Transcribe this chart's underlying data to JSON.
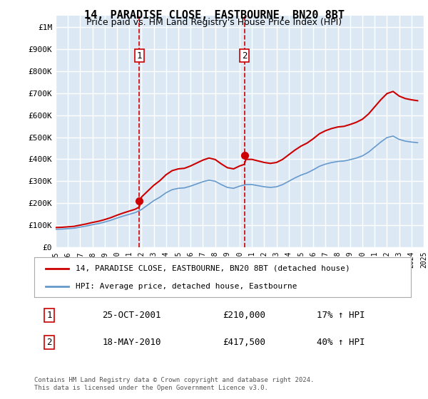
{
  "title": "14, PARADISE CLOSE, EASTBOURNE, BN20 8BT",
  "subtitle": "Price paid vs. HM Land Registry's House Price Index (HPI)",
  "ylabel": "",
  "ylim": [
    0,
    1050000
  ],
  "yticks": [
    0,
    100000,
    200000,
    300000,
    400000,
    500000,
    600000,
    700000,
    800000,
    900000,
    1000000
  ],
  "ytick_labels": [
    "£0",
    "£100K",
    "£200K",
    "£300K",
    "£400K",
    "£500K",
    "£600K",
    "£700K",
    "£800K",
    "£900K",
    "£1M"
  ],
  "bg_color": "#dce9f5",
  "plot_bg": "#dce9f5",
  "grid_color": "#ffffff",
  "red_line_color": "#cc0000",
  "blue_line_color": "#6699cc",
  "vline_color": "#cc0000",
  "purchase1_x": 2001.82,
  "purchase1_y": 210000,
  "purchase1_label": "1",
  "purchase1_date": "25-OCT-2001",
  "purchase1_price": "£210,000",
  "purchase1_pct": "17% ↑ HPI",
  "purchase2_x": 2010.38,
  "purchase2_y": 417500,
  "purchase2_label": "2",
  "purchase2_date": "18-MAY-2010",
  "purchase2_price": "£417,500",
  "purchase2_pct": "40% ↑ HPI",
  "legend_label_red": "14, PARADISE CLOSE, EASTBOURNE, BN20 8BT (detached house)",
  "legend_label_blue": "HPI: Average price, detached house, Eastbourne",
  "footnote": "Contains HM Land Registry data © Crown copyright and database right 2024.\nThis data is licensed under the Open Government Licence v3.0.",
  "xmin": 1995,
  "xmax": 2025
}
